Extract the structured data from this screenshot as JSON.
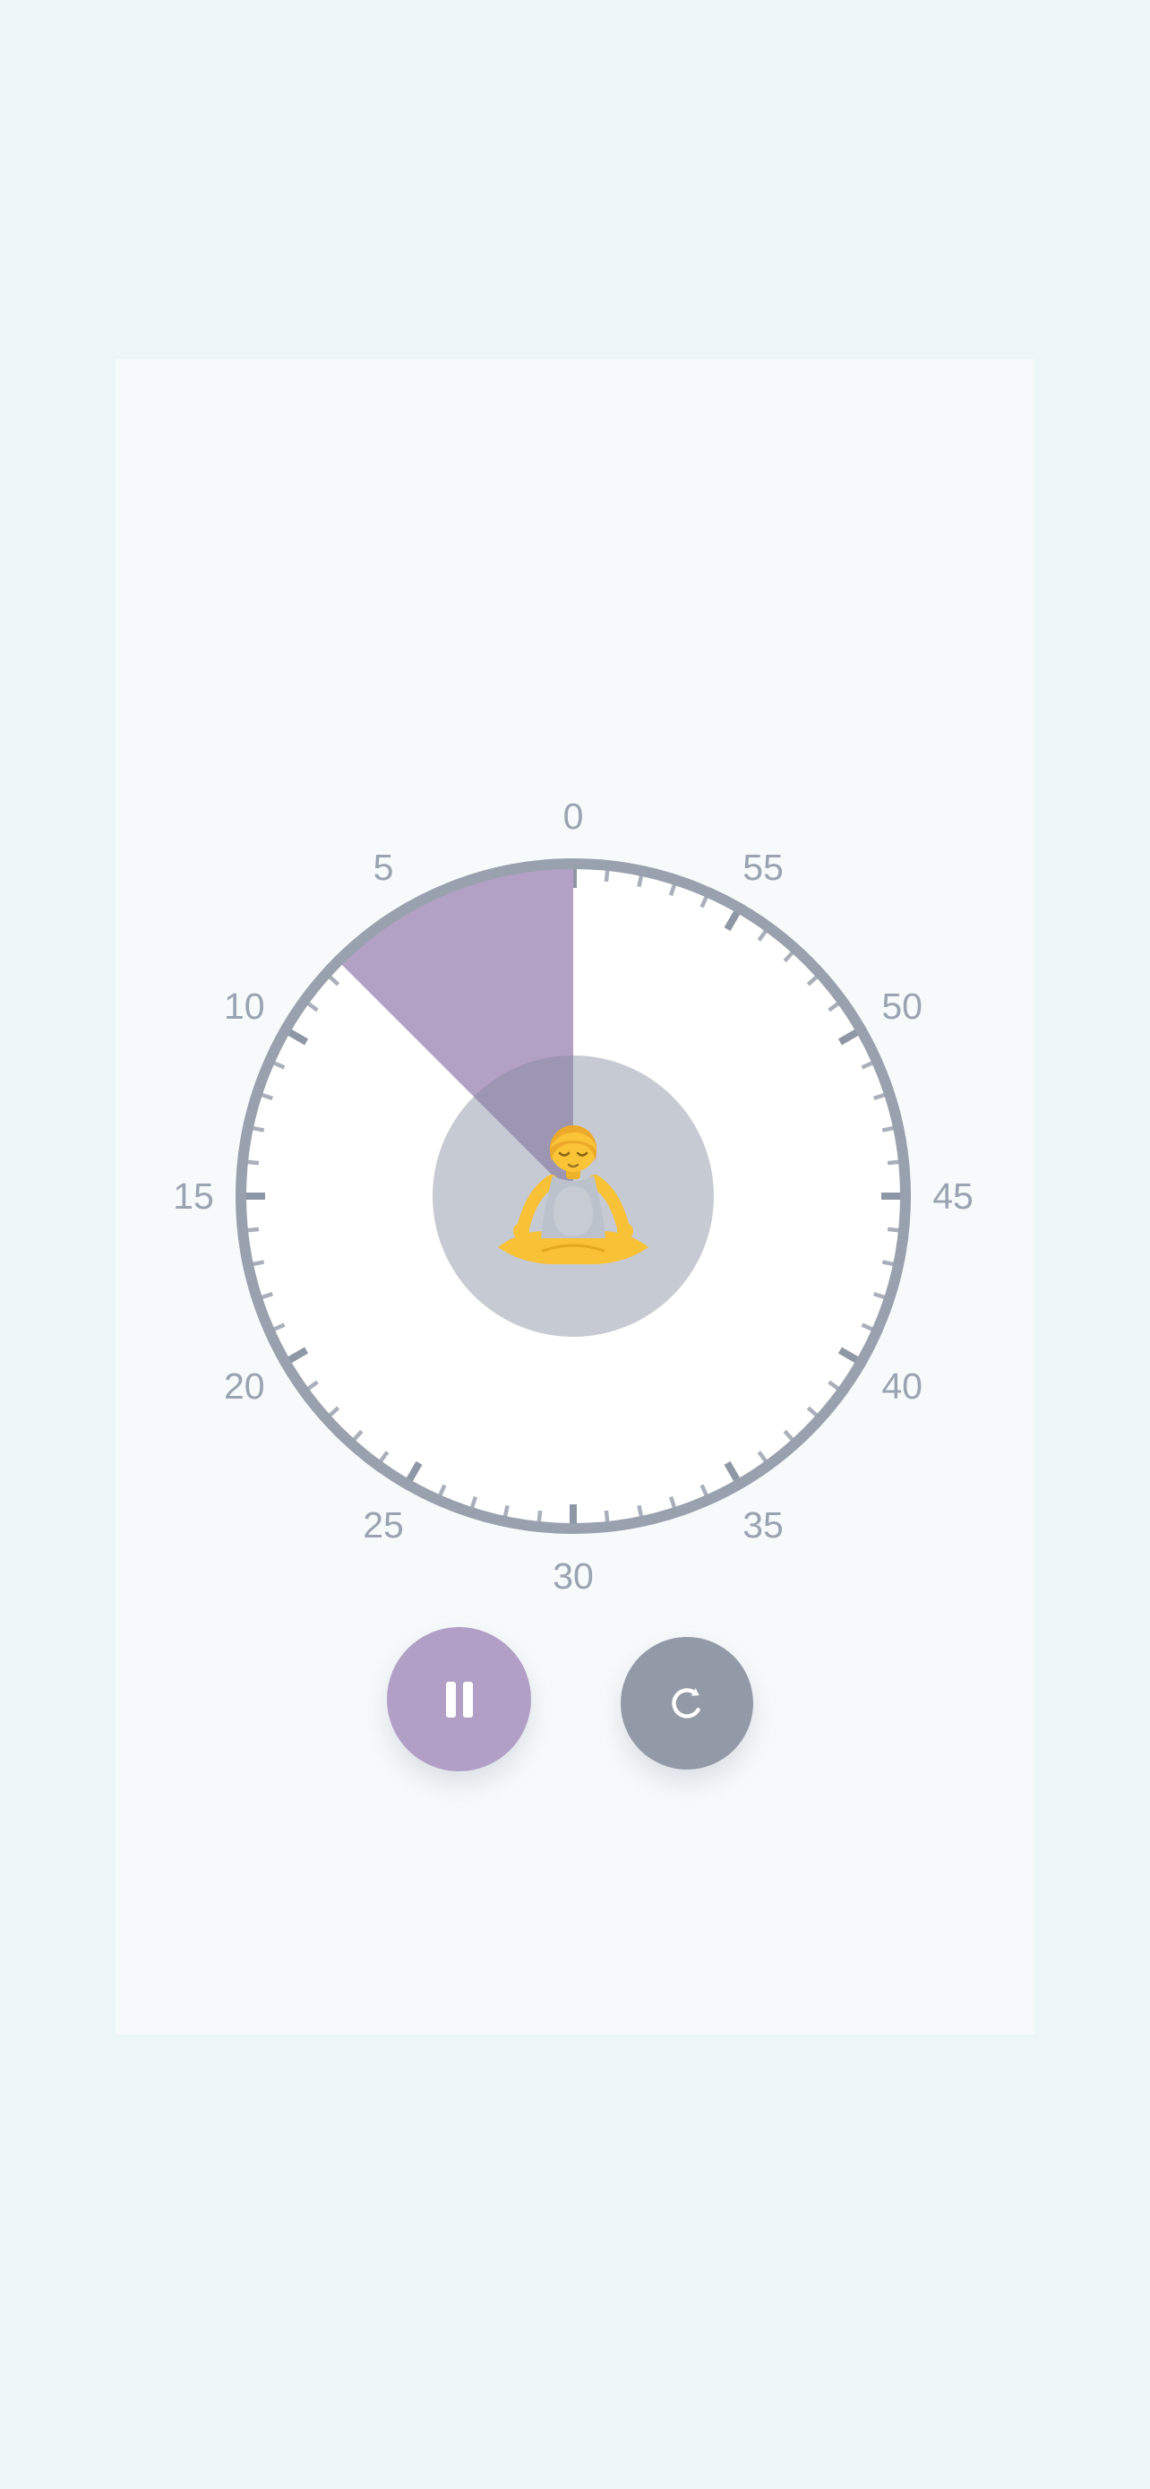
{
  "app": {
    "kind": "meditation-timer-screen"
  },
  "page": {
    "background_color": "#ecf6f8",
    "card_color": "#f7fafb"
  },
  "dial": {
    "unit": "minutes",
    "total_minutes": 60,
    "direction": "counterclockwise",
    "selected_minutes": 7.5,
    "label_step": 5,
    "minor_tick_step": 1,
    "labels": [
      "0",
      "5",
      "10",
      "15",
      "20",
      "25",
      "30",
      "35",
      "40",
      "45",
      "50",
      "55"
    ],
    "center_icon": "person-in-lotus-position-icon",
    "colors": {
      "face": "#ffffff",
      "ring": "#99a1ae",
      "tick_major": "#8e97a5",
      "tick_minor": "#a9b0bb",
      "label_text": "#9aa3b1",
      "wedge": "#b3a0c5",
      "hub": "rgba(128,137,155,0.45)"
    }
  },
  "controls": {
    "pause": {
      "icon": "pause-icon",
      "color": "#b29fc6",
      "glyph_color": "#ffffff"
    },
    "reset": {
      "icon": "reset-icon",
      "color": "#939aa7",
      "glyph_color": "#ffffff"
    }
  }
}
